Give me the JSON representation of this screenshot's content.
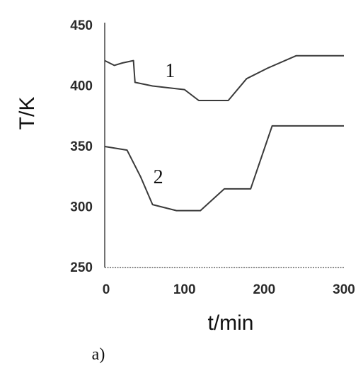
{
  "chart_data": {
    "type": "line",
    "title": "",
    "panel_label": "a)",
    "xlabel": "t/min",
    "ylabel": "T/K",
    "xlim": [
      0,
      300
    ],
    "ylim": [
      250,
      450
    ],
    "xticks": [
      0,
      100,
      200,
      300
    ],
    "yticks": [
      250,
      300,
      350,
      400,
      450
    ],
    "grid": false,
    "legend": "none",
    "series": [
      {
        "label": "1",
        "color": "#3a3a3a",
        "x": [
          0,
          12,
          22,
          36,
          38,
          60,
          100,
          118,
          155,
          178,
          205,
          240,
          300
        ],
        "y": [
          421,
          417,
          419,
          421,
          403,
          400,
          397,
          388,
          388,
          406,
          415,
          425,
          425
        ]
      },
      {
        "label": "2",
        "color": "#3a3a3a",
        "x": [
          0,
          28,
          45,
          60,
          90,
          120,
          150,
          183,
          210,
          300
        ],
        "y": [
          350,
          347,
          325,
          302,
          297,
          297,
          315,
          315,
          367,
          367
        ]
      }
    ]
  }
}
